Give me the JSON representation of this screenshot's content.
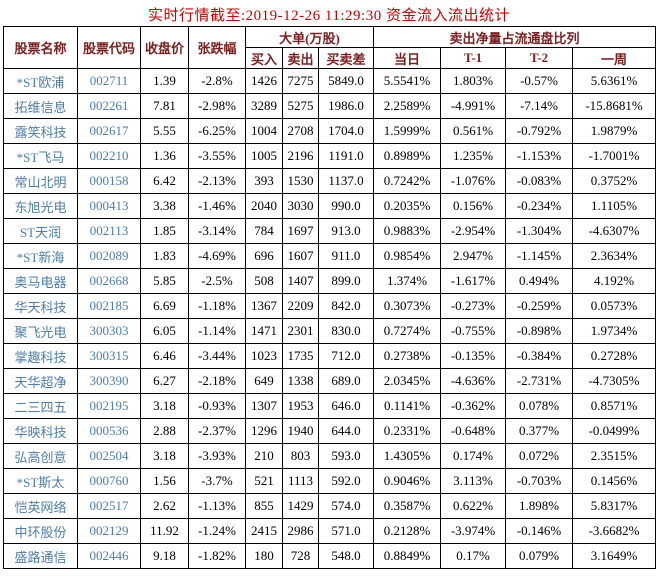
{
  "title": "实时行情截至:2019-12-26 11:29:30 资金流入流出统计",
  "table": {
    "headers": {
      "stock_name": "股票名称",
      "stock_code": "股票代码",
      "close_price": "收盘价",
      "change_pct": "张跌幅",
      "big_order_group": "大单(万股)",
      "buy": "买入",
      "sell": "卖出",
      "buy_sell_diff": "买卖差",
      "net_sell_ratio_group": "卖出净量占流通盘比列",
      "today": "当日",
      "t_minus_1": "T-1",
      "t_minus_2": "T-2",
      "one_week": "一周"
    },
    "rows": [
      [
        "*ST欧浦",
        "002711",
        "1.39",
        "-2.8%",
        "1426",
        "7275",
        "5849.0",
        "5.5541%",
        "1.803%",
        "-0.57%",
        "5.6361%"
      ],
      [
        "拓维信息",
        "002261",
        "7.81",
        "-2.98%",
        "3289",
        "5275",
        "1986.0",
        "2.2589%",
        "-4.991%",
        "-7.14%",
        "-15.8681%"
      ],
      [
        "露笑科技",
        "002617",
        "5.55",
        "-6.25%",
        "1004",
        "2708",
        "1704.0",
        "1.5999%",
        "0.561%",
        "-0.792%",
        "1.9879%"
      ],
      [
        "*ST飞马",
        "002210",
        "1.36",
        "-3.55%",
        "1005",
        "2196",
        "1191.0",
        "0.8989%",
        "1.235%",
        "-1.153%",
        "-1.7001%"
      ],
      [
        "常山北明",
        "000158",
        "6.42",
        "-2.13%",
        "393",
        "1530",
        "1137.0",
        "0.7242%",
        "-1.076%",
        "-0.083%",
        "0.3752%"
      ],
      [
        "东旭光电",
        "000413",
        "3.38",
        "-1.46%",
        "2040",
        "3030",
        "990.0",
        "0.2035%",
        "0.156%",
        "-0.234%",
        "1.1105%"
      ],
      [
        "ST天润",
        "002113",
        "1.85",
        "-3.14%",
        "784",
        "1697",
        "913.0",
        "0.9883%",
        "-2.954%",
        "-1.304%",
        "-4.6307%"
      ],
      [
        "*ST新海",
        "002089",
        "1.83",
        "-4.69%",
        "696",
        "1607",
        "911.0",
        "0.9854%",
        "2.947%",
        "-1.145%",
        "2.3634%"
      ],
      [
        "奥马电器",
        "002668",
        "5.85",
        "-2.5%",
        "508",
        "1407",
        "899.0",
        "1.374%",
        "-1.617%",
        "0.494%",
        "4.192%"
      ],
      [
        "华天科技",
        "002185",
        "6.69",
        "-1.18%",
        "1367",
        "2209",
        "842.0",
        "0.3073%",
        "-0.273%",
        "-0.259%",
        "0.0573%"
      ],
      [
        "聚飞光电",
        "300303",
        "6.05",
        "-1.14%",
        "1471",
        "2301",
        "830.0",
        "0.7274%",
        "-0.755%",
        "-0.898%",
        "1.9734%"
      ],
      [
        "掌趣科技",
        "300315",
        "6.46",
        "-3.44%",
        "1023",
        "1735",
        "712.0",
        "0.2738%",
        "-0.135%",
        "-0.384%",
        "0.2728%"
      ],
      [
        "天华超净",
        "300390",
        "6.27",
        "-2.18%",
        "649",
        "1338",
        "689.0",
        "2.0345%",
        "-4.636%",
        "-2.731%",
        "-4.7305%"
      ],
      [
        "二三四五",
        "002195",
        "3.18",
        "-0.93%",
        "1307",
        "1953",
        "646.0",
        "0.1141%",
        "-0.362%",
        "0.078%",
        "0.8571%"
      ],
      [
        "华映科技",
        "000536",
        "2.88",
        "-2.37%",
        "1296",
        "1940",
        "644.0",
        "0.2331%",
        "-0.648%",
        "0.377%",
        "-0.0499%"
      ],
      [
        "弘高创意",
        "002504",
        "3.18",
        "-3.93%",
        "210",
        "803",
        "593.0",
        "1.4305%",
        "0.174%",
        "0.072%",
        "2.3515%"
      ],
      [
        "*ST斯太",
        "000760",
        "1.56",
        "-3.7%",
        "521",
        "1113",
        "592.0",
        "0.9046%",
        "3.113%",
        "-0.703%",
        "0.1456%"
      ],
      [
        "恺英网络",
        "002517",
        "2.62",
        "-1.13%",
        "855",
        "1429",
        "574.0",
        "0.3587%",
        "0.622%",
        "1.898%",
        "5.8317%"
      ],
      [
        "中环股份",
        "002129",
        "11.92",
        "-1.24%",
        "2415",
        "2986",
        "571.0",
        "0.2128%",
        "-3.974%",
        "-0.146%",
        "-3.6682%"
      ],
      [
        "盛路通信",
        "002446",
        "9.18",
        "-1.82%",
        "180",
        "728",
        "548.0",
        "0.8849%",
        "0.17%",
        "0.079%",
        "3.1649%"
      ]
    ]
  },
  "colors": {
    "title_red": "#cc0000",
    "header_maroon": "#7a1f1f",
    "stock_link_blue": "#4d7ea8",
    "border_black": "#000000"
  }
}
